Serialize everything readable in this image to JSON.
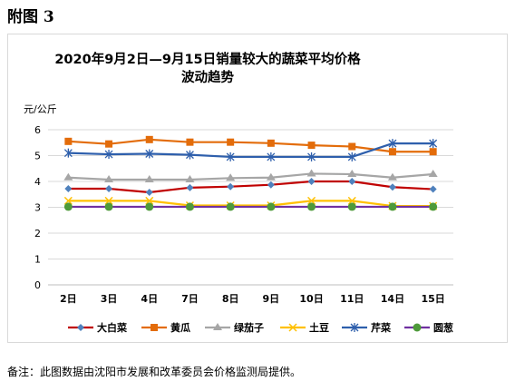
{
  "figure_label": "附图 3",
  "note": "备注：此图数据由沈阳市发展和改革委员会价格监测局提供。",
  "chart_data": {
    "type": "line",
    "title_line1": "2020年9月2日—9月15日销量较大的蔬菜平均价格",
    "title_line2": "波动趋势",
    "unit": "元/公斤",
    "categories": [
      "2日",
      "3日",
      "4日",
      "7日",
      "8日",
      "9日",
      "10日",
      "11日",
      "14日",
      "15日"
    ],
    "y_ticks": [
      "0",
      "1",
      "2",
      "3",
      "4",
      "5",
      "6"
    ],
    "ylim": [
      0,
      6
    ],
    "grid": true,
    "legend_position": "bottom",
    "series": [
      {
        "name": "大白菜",
        "color": "#c00000",
        "marker": "diamond",
        "marker_color": "#4f81bd",
        "values": [
          3.72,
          3.72,
          3.58,
          3.76,
          3.8,
          3.87,
          4.0,
          4.0,
          3.78,
          3.7
        ]
      },
      {
        "name": "黄瓜",
        "color": "#e36c0a",
        "marker": "square",
        "marker_color": "#e36c0a",
        "values": [
          5.55,
          5.45,
          5.62,
          5.52,
          5.52,
          5.48,
          5.4,
          5.35,
          5.15,
          5.15
        ]
      },
      {
        "name": "绿茄子",
        "color": "#a6a6a6",
        "marker": "triangle",
        "marker_color": "#a6a6a6",
        "values": [
          4.15,
          4.07,
          4.07,
          4.07,
          4.13,
          4.15,
          4.3,
          4.28,
          4.15,
          4.28
        ]
      },
      {
        "name": "土豆",
        "color": "#ffc000",
        "marker": "x",
        "marker_color": "#ffc000",
        "values": [
          3.25,
          3.25,
          3.25,
          3.07,
          3.07,
          3.07,
          3.25,
          3.25,
          3.05,
          3.05
        ]
      },
      {
        "name": "芹菜",
        "color": "#2e5fac",
        "marker": "star",
        "marker_color": "#2e5fac",
        "values": [
          5.1,
          5.05,
          5.07,
          5.03,
          4.95,
          4.95,
          4.95,
          4.95,
          5.47,
          5.47
        ]
      },
      {
        "name": "圆葱",
        "color": "#7030a0",
        "marker": "circle",
        "marker_color": "#4e9a3a",
        "values": [
          3.02,
          3.02,
          3.02,
          3.02,
          3.02,
          3.02,
          3.02,
          3.02,
          3.02,
          3.02
        ]
      }
    ]
  }
}
